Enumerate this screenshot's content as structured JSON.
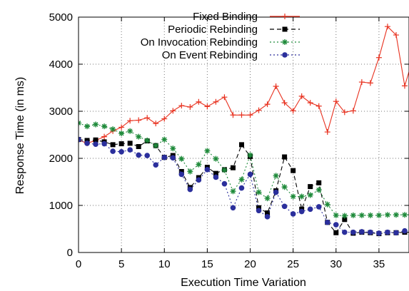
{
  "chart_data": {
    "type": "line",
    "title": "",
    "xlabel": "Execution Time Variation",
    "ylabel": "Response Time (in ms)",
    "xlim": [
      0,
      38.5
    ],
    "ylim": [
      0,
      5000
    ],
    "xticks": [
      0,
      5,
      10,
      15,
      20,
      25,
      30,
      35
    ],
    "yticks": [
      0,
      1000,
      2000,
      3000,
      4000,
      5000
    ],
    "grid": true,
    "grid_style": "dotted",
    "legend_position": "top-right",
    "x": [
      0,
      1,
      2,
      3,
      4,
      5,
      6,
      7,
      8,
      9,
      10,
      11,
      12,
      13,
      14,
      15,
      16,
      17,
      18,
      19,
      20,
      21,
      22,
      23,
      24,
      25,
      26,
      27,
      28,
      29,
      30,
      31,
      32,
      33,
      34,
      35,
      36,
      37,
      38,
      38.5
    ],
    "series": [
      {
        "name": "Fixed Binding",
        "color": "#e8311f",
        "line": "solid",
        "marker": "plus",
        "values": [
          2390,
          2320,
          2380,
          2460,
          2580,
          2660,
          2800,
          2810,
          2860,
          2740,
          2840,
          3010,
          3120,
          3090,
          3200,
          3100,
          3200,
          3300,
          2920,
          2920,
          2920,
          3020,
          3150,
          3530,
          3180,
          3010,
          3320,
          3180,
          3110,
          2560,
          3210,
          2980,
          3010,
          3620,
          3600,
          4140,
          4800,
          4620,
          3540,
          3840
        ]
      },
      {
        "name": "Periodic Rebinding",
        "color": "#000000",
        "line": "dashed",
        "marker": "square",
        "values": [
          2400,
          2380,
          2390,
          2350,
          2290,
          2310,
          2320,
          2250,
          2370,
          2270,
          2020,
          2060,
          1720,
          1380,
          1590,
          1810,
          1680,
          1760,
          1800,
          2290,
          2040,
          950,
          840,
          1310,
          2030,
          1740,
          920,
          1400,
          1480,
          640,
          420,
          700,
          410,
          430,
          420,
          400,
          420,
          420,
          430,
          430
        ]
      },
      {
        "name": "On Invocation Rebinding",
        "color": "#1e8a3a",
        "line": "dotted",
        "marker": "star",
        "values": [
          2750,
          2680,
          2720,
          2680,
          2620,
          2530,
          2580,
          2460,
          2380,
          2270,
          2400,
          2210,
          1990,
          1720,
          1870,
          2160,
          1990,
          1750,
          1300,
          1550,
          2070,
          1280,
          1150,
          1630,
          1390,
          1190,
          1190,
          1220,
          1330,
          1020,
          790,
          780,
          790,
          790,
          790,
          790,
          800,
          800,
          800,
          800
        ]
      },
      {
        "name": "On Event Rebinding",
        "color": "#2b2f9c",
        "line": "dotted",
        "marker": "circle",
        "values": [
          2400,
          2320,
          2300,
          2310,
          2150,
          2140,
          2180,
          2070,
          2060,
          1860,
          2020,
          2010,
          1660,
          1340,
          1540,
          1760,
          1600,
          1460,
          950,
          1370,
          1660,
          890,
          760,
          1280,
          980,
          820,
          870,
          920,
          970,
          640,
          590,
          430,
          430,
          440,
          430,
          410,
          430,
          420,
          460,
          460
        ]
      }
    ]
  }
}
